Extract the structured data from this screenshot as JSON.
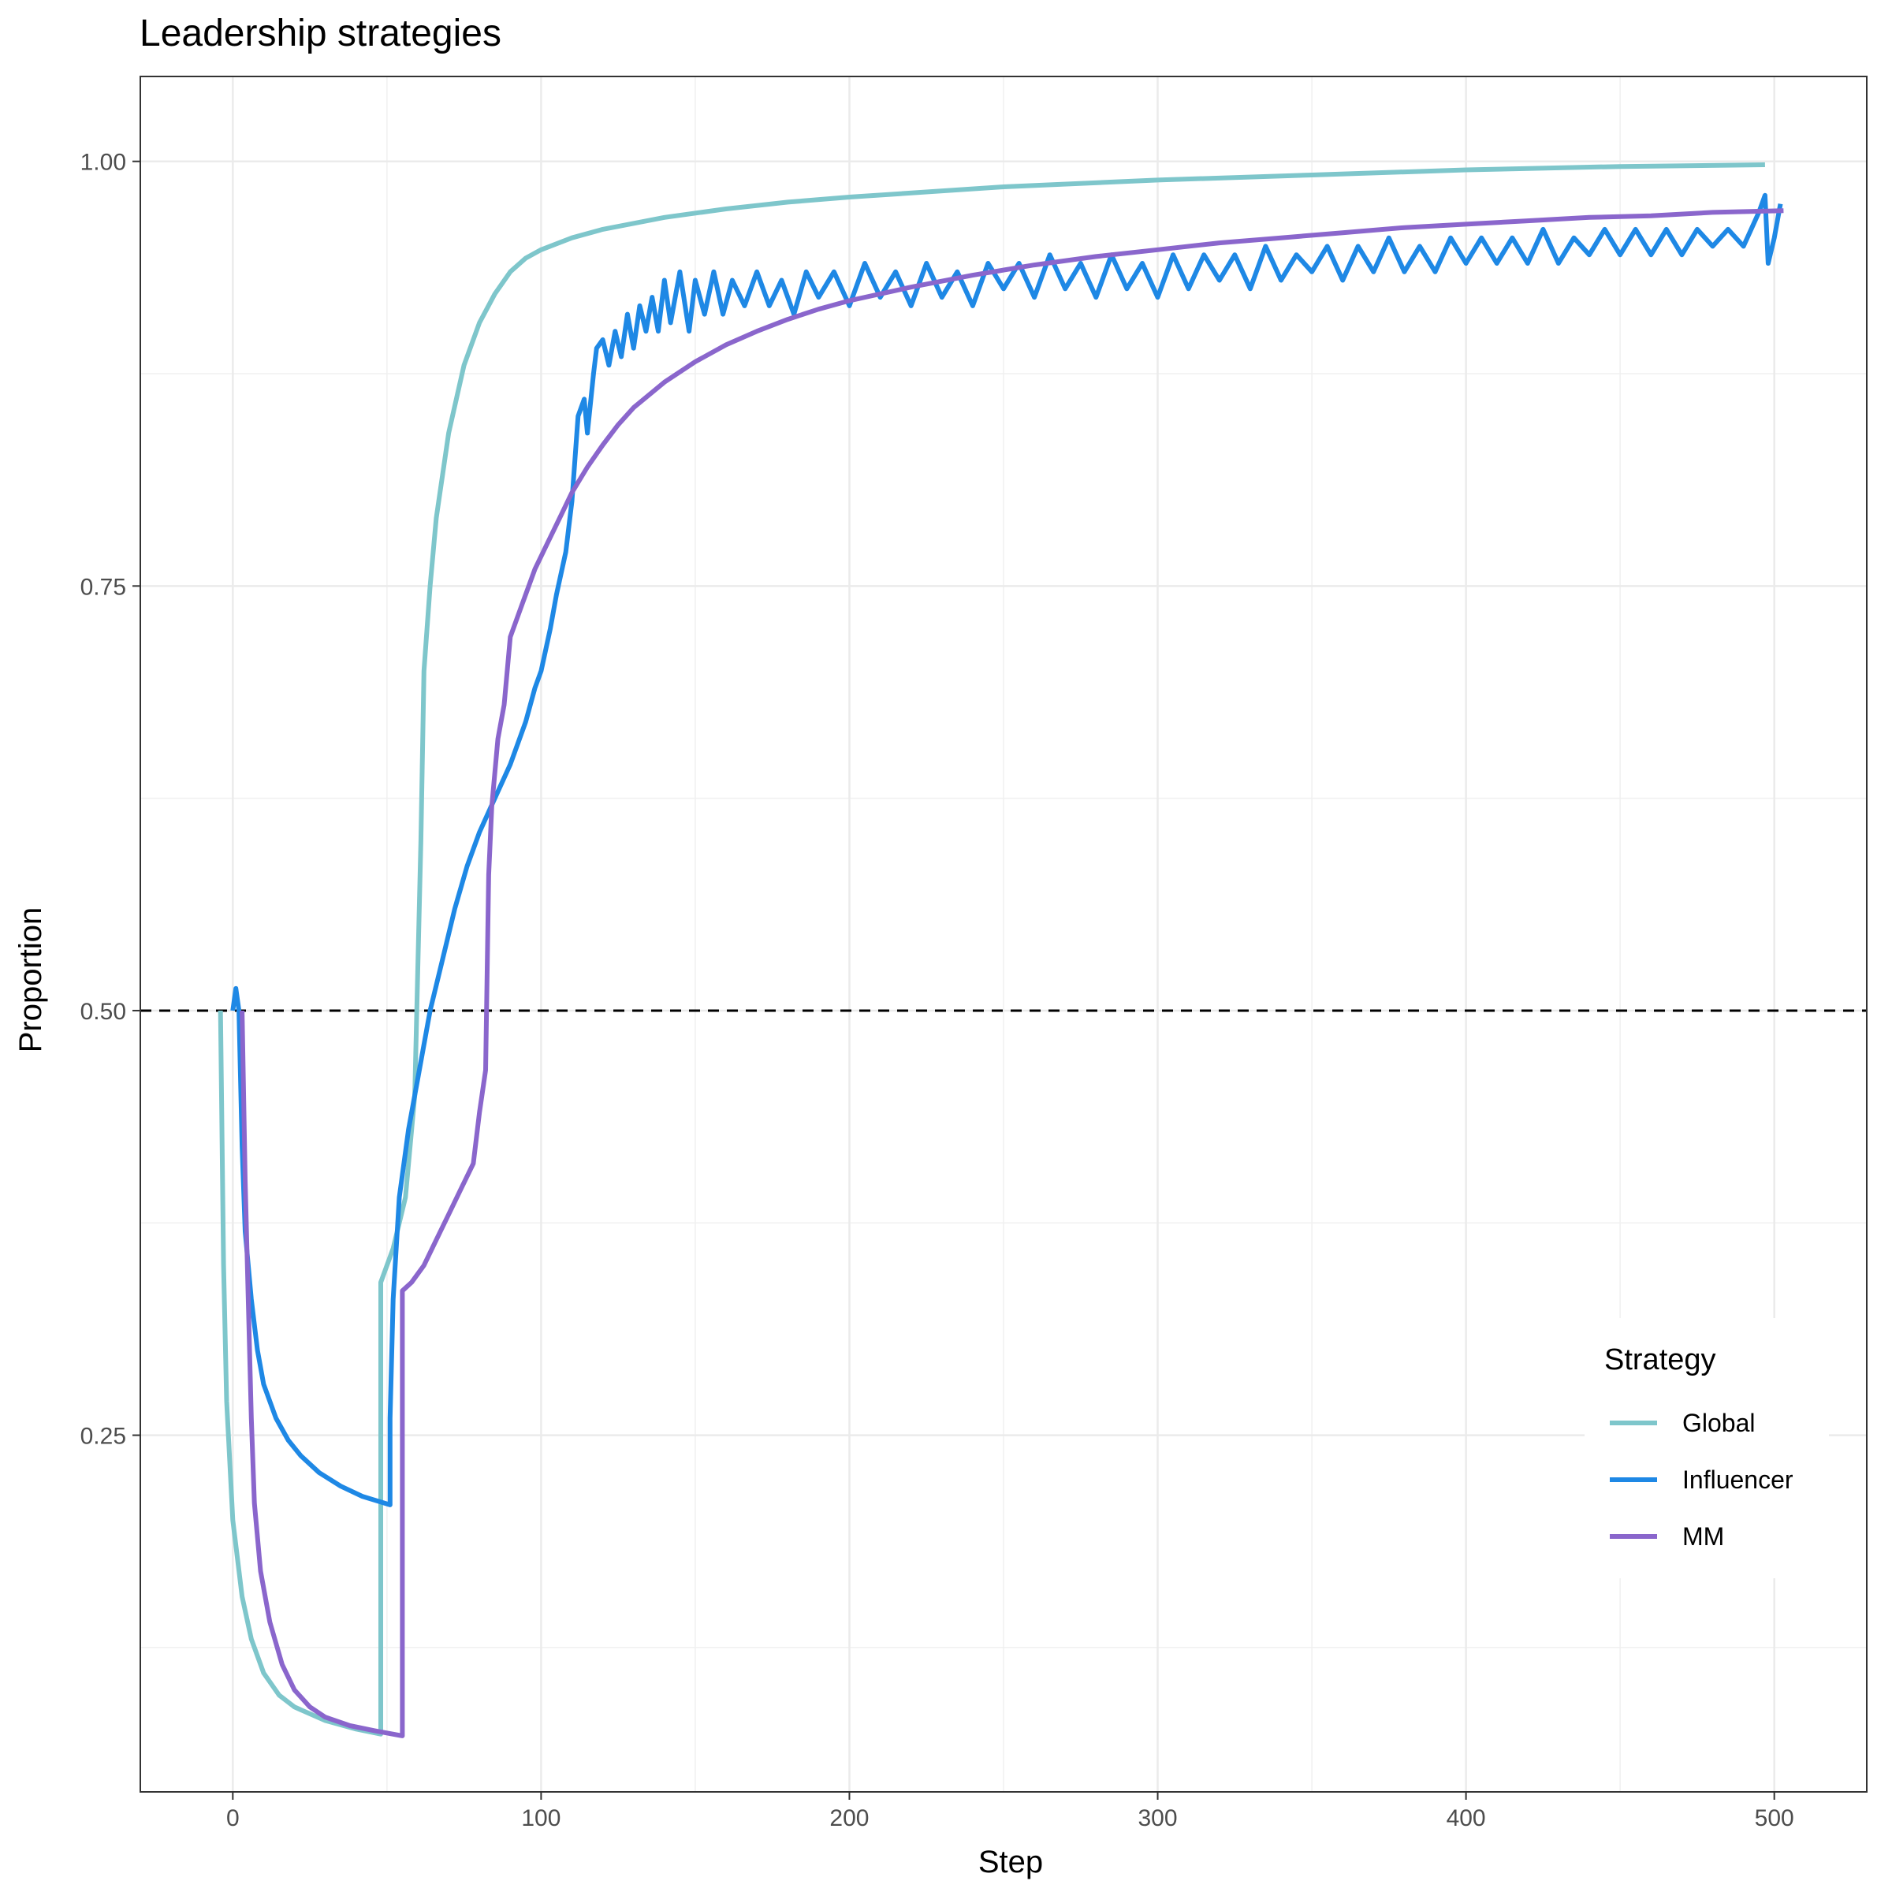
{
  "chart_data": {
    "type": "line",
    "title": "Leadership strategies",
    "xlabel": "Step",
    "ylabel": "Proportion",
    "xlim": [
      -30,
      530
    ],
    "ylim": [
      0.04,
      1.05
    ],
    "x_ticks": [
      0,
      100,
      200,
      300,
      400,
      500
    ],
    "x_tick_labels": [
      "0",
      "100",
      "200",
      "300",
      "400",
      "500"
    ],
    "y_ticks": [
      0.25,
      0.5,
      0.75,
      1.0
    ],
    "y_tick_labels": [
      "0.25",
      "0.50",
      "0.75",
      "1.00"
    ],
    "grid": true,
    "reference_line": {
      "y": 0.5,
      "style": "dashed",
      "color": "#000000"
    },
    "legend": {
      "title": "Strategy",
      "position": "bottom-right"
    },
    "series": [
      {
        "name": "Global",
        "color": "#7ec6cb",
        "points": [
          [
            -4,
            0.5
          ],
          [
            -3,
            0.35
          ],
          [
            -2,
            0.27
          ],
          [
            0,
            0.2
          ],
          [
            3,
            0.155
          ],
          [
            6,
            0.13
          ],
          [
            10,
            0.11
          ],
          [
            15,
            0.097
          ],
          [
            20,
            0.09
          ],
          [
            30,
            0.082
          ],
          [
            40,
            0.077
          ],
          [
            48,
            0.074
          ],
          [
            48,
            0.34
          ],
          [
            52,
            0.36
          ],
          [
            56,
            0.39
          ],
          [
            59,
            0.45
          ],
          [
            61,
            0.6
          ],
          [
            62,
            0.7
          ],
          [
            64,
            0.75
          ],
          [
            66,
            0.79
          ],
          [
            70,
            0.84
          ],
          [
            75,
            0.88
          ],
          [
            80,
            0.905
          ],
          [
            85,
            0.922
          ],
          [
            90,
            0.935
          ],
          [
            95,
            0.943
          ],
          [
            100,
            0.948
          ],
          [
            110,
            0.955
          ],
          [
            120,
            0.96
          ],
          [
            140,
            0.967
          ],
          [
            160,
            0.972
          ],
          [
            180,
            0.976
          ],
          [
            200,
            0.979
          ],
          [
            250,
            0.985
          ],
          [
            300,
            0.989
          ],
          [
            350,
            0.992
          ],
          [
            400,
            0.995
          ],
          [
            450,
            0.997
          ],
          [
            497,
            0.998
          ]
        ]
      },
      {
        "name": "Influencer",
        "color": "#1e88e5",
        "points": [
          [
            0,
            0.5
          ],
          [
            1,
            0.513
          ],
          [
            2,
            0.5
          ],
          [
            3,
            0.42
          ],
          [
            4,
            0.37
          ],
          [
            6,
            0.33
          ],
          [
            8,
            0.3
          ],
          [
            10,
            0.28
          ],
          [
            14,
            0.26
          ],
          [
            18,
            0.247
          ],
          [
            22,
            0.238
          ],
          [
            28,
            0.228
          ],
          [
            35,
            0.22
          ],
          [
            42,
            0.214
          ],
          [
            51,
            0.209
          ],
          [
            51,
            0.26
          ],
          [
            52,
            0.33
          ],
          [
            54,
            0.39
          ],
          [
            57,
            0.43
          ],
          [
            60,
            0.46
          ],
          [
            64,
            0.5
          ],
          [
            68,
            0.53
          ],
          [
            72,
            0.56
          ],
          [
            76,
            0.585
          ],
          [
            80,
            0.605
          ],
          [
            85,
            0.625
          ],
          [
            90,
            0.645
          ],
          [
            95,
            0.67
          ],
          [
            98,
            0.69
          ],
          [
            100,
            0.7
          ],
          [
            103,
            0.725
          ],
          [
            105,
            0.745
          ],
          [
            108,
            0.77
          ],
          [
            110,
            0.8
          ],
          [
            112,
            0.85
          ],
          [
            114,
            0.86
          ],
          [
            115,
            0.84
          ],
          [
            117,
            0.875
          ],
          [
            118,
            0.89
          ],
          [
            120,
            0.895
          ],
          [
            122,
            0.88
          ],
          [
            124,
            0.9
          ],
          [
            126,
            0.885
          ],
          [
            128,
            0.91
          ],
          [
            130,
            0.89
          ],
          [
            132,
            0.915
          ],
          [
            134,
            0.9
          ],
          [
            136,
            0.92
          ],
          [
            138,
            0.9
          ],
          [
            140,
            0.93
          ],
          [
            142,
            0.905
          ],
          [
            145,
            0.935
          ],
          [
            148,
            0.9
          ],
          [
            150,
            0.93
          ],
          [
            153,
            0.91
          ],
          [
            156,
            0.935
          ],
          [
            159,
            0.91
          ],
          [
            162,
            0.93
          ],
          [
            166,
            0.915
          ],
          [
            170,
            0.935
          ],
          [
            174,
            0.915
          ],
          [
            178,
            0.93
          ],
          [
            182,
            0.91
          ],
          [
            186,
            0.935
          ],
          [
            190,
            0.92
          ],
          [
            195,
            0.935
          ],
          [
            200,
            0.915
          ],
          [
            205,
            0.94
          ],
          [
            210,
            0.92
          ],
          [
            215,
            0.935
          ],
          [
            220,
            0.915
          ],
          [
            225,
            0.94
          ],
          [
            230,
            0.92
          ],
          [
            235,
            0.935
          ],
          [
            240,
            0.915
          ],
          [
            245,
            0.94
          ],
          [
            250,
            0.925
          ],
          [
            255,
            0.94
          ],
          [
            260,
            0.92
          ],
          [
            265,
            0.945
          ],
          [
            270,
            0.925
          ],
          [
            275,
            0.94
          ],
          [
            280,
            0.92
          ],
          [
            285,
            0.945
          ],
          [
            290,
            0.925
          ],
          [
            295,
            0.94
          ],
          [
            300,
            0.92
          ],
          [
            305,
            0.945
          ],
          [
            310,
            0.925
          ],
          [
            315,
            0.945
          ],
          [
            320,
            0.93
          ],
          [
            325,
            0.945
          ],
          [
            330,
            0.925
          ],
          [
            335,
            0.95
          ],
          [
            340,
            0.93
          ],
          [
            345,
            0.945
          ],
          [
            350,
            0.935
          ],
          [
            355,
            0.95
          ],
          [
            360,
            0.93
          ],
          [
            365,
            0.95
          ],
          [
            370,
            0.935
          ],
          [
            375,
            0.955
          ],
          [
            380,
            0.935
          ],
          [
            385,
            0.95
          ],
          [
            390,
            0.935
          ],
          [
            395,
            0.955
          ],
          [
            400,
            0.94
          ],
          [
            405,
            0.955
          ],
          [
            410,
            0.94
          ],
          [
            415,
            0.955
          ],
          [
            420,
            0.94
          ],
          [
            425,
            0.96
          ],
          [
            430,
            0.94
          ],
          [
            435,
            0.955
          ],
          [
            440,
            0.945
          ],
          [
            445,
            0.96
          ],
          [
            450,
            0.945
          ],
          [
            455,
            0.96
          ],
          [
            460,
            0.945
          ],
          [
            465,
            0.96
          ],
          [
            470,
            0.945
          ],
          [
            475,
            0.96
          ],
          [
            480,
            0.95
          ],
          [
            485,
            0.96
          ],
          [
            490,
            0.95
          ],
          [
            495,
            0.97
          ],
          [
            497,
            0.98
          ],
          [
            498,
            0.94
          ],
          [
            500,
            0.955
          ],
          [
            502,
            0.975
          ]
        ]
      },
      {
        "name": "MM",
        "color": "#8a66cc",
        "points": [
          [
            3,
            0.5
          ],
          [
            4,
            0.4
          ],
          [
            5,
            0.33
          ],
          [
            6,
            0.26
          ],
          [
            7,
            0.21
          ],
          [
            9,
            0.17
          ],
          [
            12,
            0.14
          ],
          [
            16,
            0.115
          ],
          [
            20,
            0.1
          ],
          [
            25,
            0.09
          ],
          [
            30,
            0.084
          ],
          [
            38,
            0.079
          ],
          [
            46,
            0.076
          ],
          [
            55,
            0.073
          ],
          [
            55,
            0.335
          ],
          [
            58,
            0.34
          ],
          [
            62,
            0.35
          ],
          [
            66,
            0.365
          ],
          [
            70,
            0.38
          ],
          [
            74,
            0.395
          ],
          [
            78,
            0.41
          ],
          [
            80,
            0.44
          ],
          [
            82,
            0.465
          ],
          [
            83,
            0.58
          ],
          [
            84,
            0.62
          ],
          [
            86,
            0.66
          ],
          [
            88,
            0.68
          ],
          [
            90,
            0.72
          ],
          [
            94,
            0.74
          ],
          [
            98,
            0.76
          ],
          [
            102,
            0.775
          ],
          [
            106,
            0.79
          ],
          [
            110,
            0.805
          ],
          [
            115,
            0.82
          ],
          [
            120,
            0.833
          ],
          [
            125,
            0.845
          ],
          [
            130,
            0.855
          ],
          [
            140,
            0.87
          ],
          [
            150,
            0.882
          ],
          [
            160,
            0.892
          ],
          [
            170,
            0.9
          ],
          [
            180,
            0.907
          ],
          [
            190,
            0.913
          ],
          [
            200,
            0.918
          ],
          [
            220,
            0.926
          ],
          [
            240,
            0.933
          ],
          [
            260,
            0.939
          ],
          [
            280,
            0.944
          ],
          [
            300,
            0.948
          ],
          [
            320,
            0.952
          ],
          [
            340,
            0.955
          ],
          [
            360,
            0.958
          ],
          [
            380,
            0.961
          ],
          [
            400,
            0.963
          ],
          [
            420,
            0.965
          ],
          [
            440,
            0.967
          ],
          [
            460,
            0.968
          ],
          [
            480,
            0.97
          ],
          [
            503,
            0.971
          ]
        ]
      }
    ]
  }
}
